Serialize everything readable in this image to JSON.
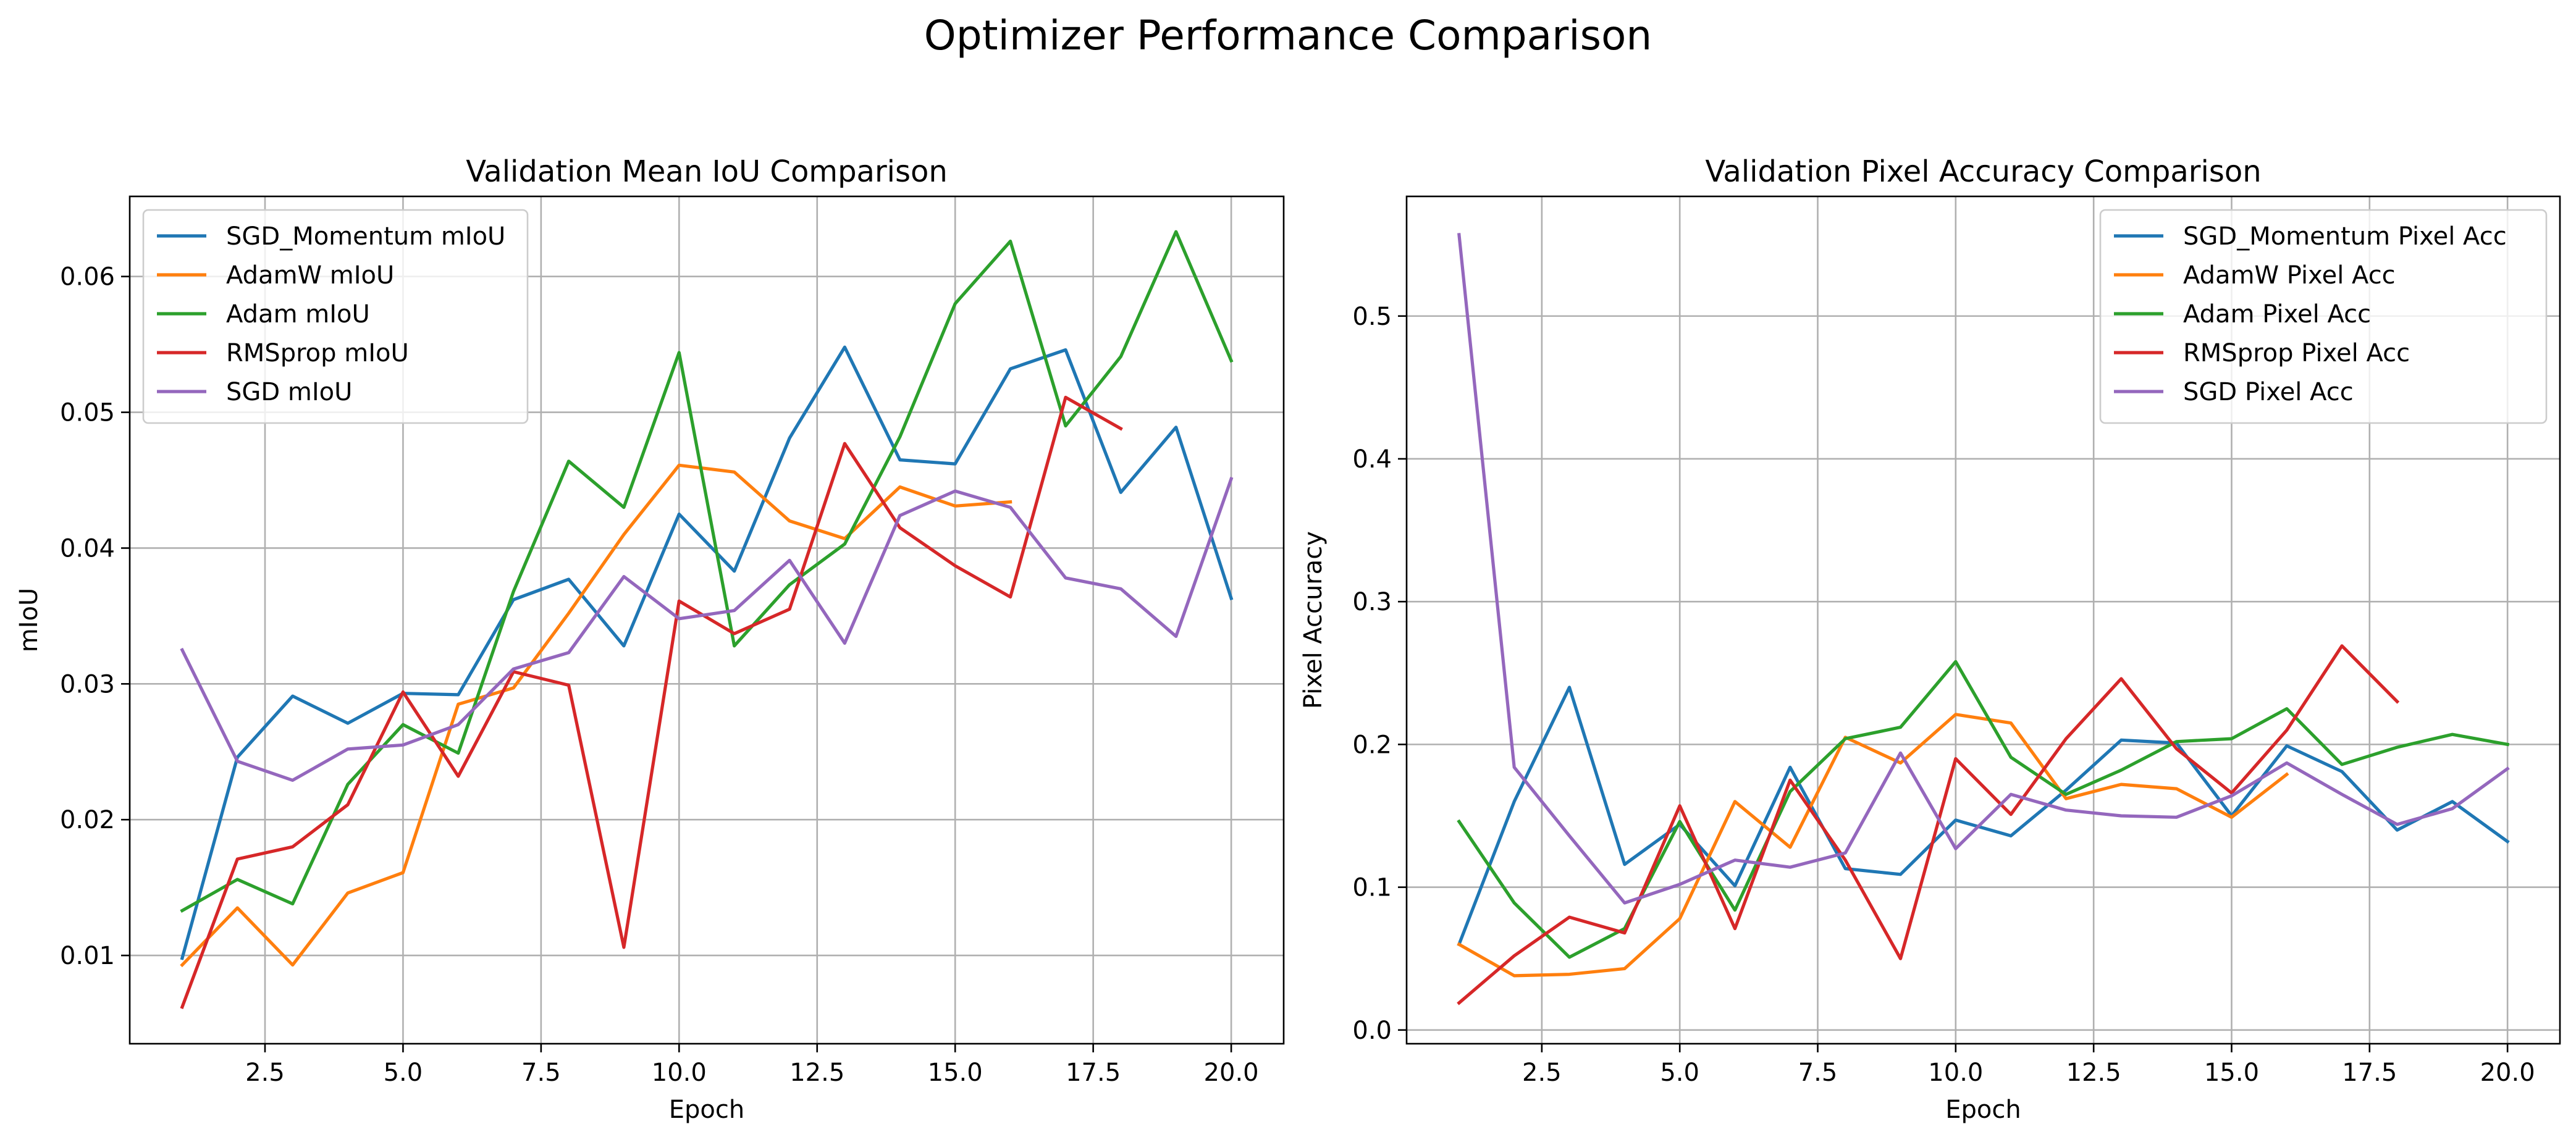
{
  "figure": {
    "suptitle": "Optimizer Performance Comparison"
  },
  "chart_data": [
    {
      "type": "line",
      "title": "Validation Mean IoU Comparison",
      "xlabel": "Epoch",
      "ylabel": "mIoU",
      "xlim": [
        0.05,
        20.95
      ],
      "ylim": [
        0.0035,
        0.0659
      ],
      "xticks": [
        "2.5",
        "5.0",
        "7.5",
        "10.0",
        "12.5",
        "15.0",
        "17.5",
        "20.0"
      ],
      "yticks": [
        "0.01",
        "0.02",
        "0.03",
        "0.04",
        "0.05",
        "0.06"
      ],
      "grid": true,
      "legend_position": "top-left",
      "series": [
        {
          "name": "SGD_Momentum mIoU",
          "color": "#1f77b4",
          "x": [
            1,
            2,
            3,
            4,
            5,
            6,
            7,
            8,
            9,
            10,
            11,
            12,
            13,
            14,
            15,
            16,
            17,
            18,
            19,
            20
          ],
          "y": [
            0.0098,
            0.0246,
            0.0291,
            0.0271,
            0.0293,
            0.0292,
            0.0362,
            0.0377,
            0.0328,
            0.0425,
            0.0383,
            0.0481,
            0.0548,
            0.0465,
            0.0462,
            0.0532,
            0.0546,
            0.0441,
            0.0489,
            0.0363
          ]
        },
        {
          "name": "AdamW mIoU",
          "color": "#ff7f0e",
          "x": [
            1,
            2,
            3,
            4,
            5,
            6,
            7,
            8,
            9,
            10,
            11,
            12,
            13,
            14,
            15,
            16
          ],
          "y": [
            0.0093,
            0.0135,
            0.0093,
            0.0146,
            0.0161,
            0.0285,
            0.0297,
            0.0352,
            0.041,
            0.0461,
            0.0456,
            0.042,
            0.0407,
            0.0445,
            0.0431,
            0.0434
          ]
        },
        {
          "name": "Adam mIoU",
          "color": "#2ca02c",
          "x": [
            1,
            2,
            3,
            4,
            5,
            6,
            7,
            8,
            9,
            10,
            11,
            12,
            13,
            14,
            15,
            16,
            17,
            18,
            19,
            20
          ],
          "y": [
            0.0133,
            0.0156,
            0.0138,
            0.0226,
            0.027,
            0.0249,
            0.0368,
            0.0464,
            0.043,
            0.0544,
            0.0328,
            0.0373,
            0.0403,
            0.0482,
            0.058,
            0.0626,
            0.049,
            0.0541,
            0.0633,
            0.0538
          ]
        },
        {
          "name": "RMSprop mIoU",
          "color": "#d62728",
          "x": [
            1,
            2,
            3,
            4,
            5,
            6,
            7,
            8,
            9,
            10,
            11,
            12,
            13,
            14,
            15,
            16,
            17,
            18
          ],
          "y": [
            0.0062,
            0.0171,
            0.018,
            0.0211,
            0.0294,
            0.0232,
            0.0309,
            0.0299,
            0.0106,
            0.0361,
            0.0337,
            0.0355,
            0.0477,
            0.0415,
            0.0387,
            0.0364,
            0.0511,
            0.0488
          ]
        },
        {
          "name": "SGD mIoU",
          "color": "#9467bd",
          "x": [
            1,
            2,
            3,
            4,
            5,
            6,
            7,
            8,
            9,
            10,
            11,
            12,
            13,
            14,
            15,
            16,
            17,
            18,
            19,
            20
          ],
          "y": [
            0.0325,
            0.0243,
            0.0229,
            0.0252,
            0.0255,
            0.027,
            0.0311,
            0.0323,
            0.0379,
            0.0348,
            0.0354,
            0.0391,
            0.033,
            0.0424,
            0.0442,
            0.043,
            0.0378,
            0.037,
            0.0335,
            0.0451
          ]
        }
      ]
    },
    {
      "type": "line",
      "title": "Validation Pixel Accuracy Comparison",
      "xlabel": "Epoch",
      "ylabel": "Pixel Accuracy",
      "xlim": [
        0.05,
        20.95
      ],
      "ylim": [
        -0.0096,
        0.5838
      ],
      "xticks": [
        "2.5",
        "5.0",
        "7.5",
        "10.0",
        "12.5",
        "15.0",
        "17.5",
        "20.0"
      ],
      "yticks": [
        "0.0",
        "0.1",
        "0.2",
        "0.3",
        "0.4",
        "0.5"
      ],
      "grid": true,
      "legend_position": "top-right",
      "series": [
        {
          "name": "SGD_Momentum Pixel Acc",
          "color": "#1f77b4",
          "x": [
            1,
            2,
            3,
            4,
            5,
            6,
            7,
            8,
            9,
            10,
            11,
            12,
            13,
            14,
            15,
            16,
            17,
            18,
            19,
            20
          ],
          "y": [
            0.06,
            0.16,
            0.24,
            0.116,
            0.144,
            0.101,
            0.184,
            0.113,
            0.109,
            0.147,
            0.136,
            0.168,
            0.203,
            0.201,
            0.15,
            0.199,
            0.181,
            0.14,
            0.16,
            0.132
          ]
        },
        {
          "name": "AdamW Pixel Acc",
          "color": "#ff7f0e",
          "x": [
            1,
            2,
            3,
            4,
            5,
            6,
            7,
            8,
            9,
            10,
            11,
            12,
            13,
            14,
            15,
            16
          ],
          "y": [
            0.06,
            0.038,
            0.039,
            0.043,
            0.078,
            0.16,
            0.128,
            0.205,
            0.187,
            0.221,
            0.215,
            0.162,
            0.172,
            0.169,
            0.149,
            0.179
          ]
        },
        {
          "name": "Adam Pixel Acc",
          "color": "#2ca02c",
          "x": [
            1,
            2,
            3,
            4,
            5,
            6,
            7,
            8,
            9,
            10,
            11,
            12,
            13,
            14,
            15,
            16,
            17,
            18,
            19,
            20
          ],
          "y": [
            0.146,
            0.089,
            0.051,
            0.071,
            0.146,
            0.084,
            0.167,
            0.204,
            0.212,
            0.258,
            0.191,
            0.165,
            0.182,
            0.202,
            0.204,
            0.225,
            0.186,
            0.198,
            0.207,
            0.2
          ]
        },
        {
          "name": "RMSprop Pixel Acc",
          "color": "#d62728",
          "x": [
            1,
            2,
            3,
            4,
            5,
            6,
            7,
            8,
            9,
            10,
            11,
            12,
            13,
            14,
            15,
            16,
            17,
            18
          ],
          "y": [
            0.019,
            0.052,
            0.079,
            0.068,
            0.157,
            0.071,
            0.175,
            0.119,
            0.05,
            0.19,
            0.151,
            0.204,
            0.246,
            0.197,
            0.166,
            0.21,
            0.269,
            0.23
          ]
        },
        {
          "name": "SGD Pixel Acc",
          "color": "#9467bd",
          "x": [
            1,
            2,
            3,
            4,
            5,
            6,
            7,
            8,
            9,
            10,
            11,
            12,
            13,
            14,
            15,
            16,
            17,
            18,
            19,
            20
          ],
          "y": [
            0.557,
            0.184,
            0.136,
            0.089,
            0.102,
            0.119,
            0.114,
            0.124,
            0.194,
            0.127,
            0.165,
            0.154,
            0.15,
            0.149,
            0.164,
            0.187,
            0.165,
            0.144,
            0.155,
            0.183
          ]
        }
      ]
    }
  ]
}
